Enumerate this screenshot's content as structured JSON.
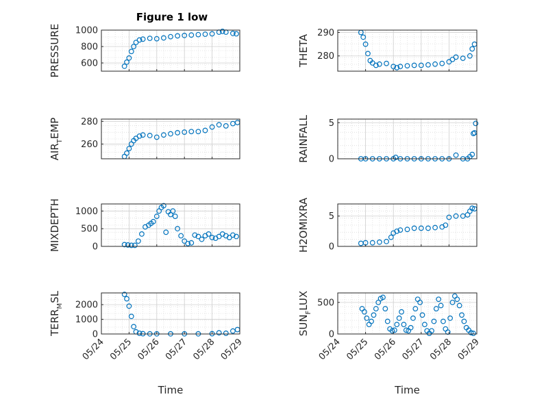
{
  "figure": {
    "title": "Figure 1 low",
    "marker_color": "#0072BD",
    "grid": "on (major + minor dotted)",
    "background": "#ffffff"
  },
  "chart_data": [
    {
      "type": "scatter",
      "name_key": "pressure",
      "ylabel": "PRESSURE",
      "xlabel": "",
      "ylim": [
        500,
        1000
      ],
      "yticks": [
        600,
        800,
        1000
      ],
      "ytick_labels": [
        "600",
        "800",
        "1000"
      ],
      "xlim": [
        "05/24 00:00",
        "05/29 00:00"
      ],
      "x": [
        "05/24 20:00",
        "05/24 22:00",
        "05/25 00:00",
        "05/25 02:00",
        "05/25 04:00",
        "05/25 06:00",
        "05/25 09:00",
        "05/25 12:00",
        "05/25 18:00",
        "05/26 00:00",
        "05/26 06:00",
        "05/26 12:00",
        "05/26 18:00",
        "05/27 00:00",
        "05/27 06:00",
        "05/27 12:00",
        "05/27 18:00",
        "05/28 00:00",
        "05/28 06:00",
        "05/28 09:00",
        "05/28 12:00",
        "05/28 18:00",
        "05/28 21:00"
      ],
      "y": [
        560,
        610,
        660,
        740,
        800,
        850,
        880,
        890,
        900,
        895,
        905,
        920,
        930,
        935,
        940,
        945,
        950,
        955,
        975,
        985,
        975,
        960,
        955
      ]
    },
    {
      "type": "scatter",
      "name_key": "theta",
      "ylabel": "THETA",
      "xlabel": "",
      "ylim": [
        273.5,
        291
      ],
      "yticks": [
        280,
        290
      ],
      "ytick_labels": [
        "280",
        "290"
      ],
      "xlim": [
        "05/24 00:00",
        "05/29 00:00"
      ],
      "x": [
        "05/24 20:00",
        "05/24 22:00",
        "05/25 00:00",
        "05/25 02:00",
        "05/25 04:00",
        "05/25 06:00",
        "05/25 09:00",
        "05/25 12:00",
        "05/25 18:00",
        "05/26 00:00",
        "05/26 03:00",
        "05/26 06:00",
        "05/26 12:00",
        "05/26 18:00",
        "05/27 00:00",
        "05/27 06:00",
        "05/27 12:00",
        "05/27 18:00",
        "05/28 00:00",
        "05/28 03:00",
        "05/28 06:00",
        "05/28 12:00",
        "05/28 18:00",
        "05/28 20:00",
        "05/28 22:00"
      ],
      "y": [
        290,
        288,
        285,
        281,
        278,
        277,
        276,
        276.5,
        276.8,
        275.5,
        275,
        275.5,
        275.8,
        276,
        276,
        276.2,
        276.5,
        276.8,
        277.5,
        278.5,
        279.5,
        279,
        280,
        283,
        285
      ]
    },
    {
      "type": "scatter",
      "name_key": "air_temp",
      "ylabel": "AIR_TEMP",
      "xlabel": "",
      "ylim": [
        247,
        282
      ],
      "yticks": [
        260,
        280
      ],
      "ytick_labels": [
        "260",
        "280"
      ],
      "xlim": [
        "05/24 00:00",
        "05/29 00:00"
      ],
      "x": [
        "05/24 20:00",
        "05/24 22:00",
        "05/25 00:00",
        "05/25 02:00",
        "05/25 04:00",
        "05/25 06:00",
        "05/25 09:00",
        "05/25 12:00",
        "05/25 18:00",
        "05/26 00:00",
        "05/26 06:00",
        "05/26 12:00",
        "05/26 18:00",
        "05/27 00:00",
        "05/27 06:00",
        "05/27 12:00",
        "05/27 18:00",
        "05/28 00:00",
        "05/28 06:00",
        "05/28 12:00",
        "05/28 18:00",
        "05/28 22:00"
      ],
      "y": [
        249,
        252,
        256,
        260,
        263,
        265,
        267,
        268,
        267.5,
        266,
        268,
        269,
        270,
        270.5,
        271,
        271,
        272,
        275,
        277,
        276,
        278,
        279
      ]
    },
    {
      "type": "scatter",
      "name_key": "rainfall",
      "ylabel": "RAINFALL",
      "xlabel": "",
      "ylim": [
        0,
        5.5
      ],
      "yticks": [
        0,
        5
      ],
      "ytick_labels": [
        "0",
        "5"
      ],
      "xlim": [
        "05/24 00:00",
        "05/29 00:00"
      ],
      "x": [
        "05/24 20:00",
        "05/25 00:00",
        "05/25 06:00",
        "05/25 12:00",
        "05/25 18:00",
        "05/26 00:00",
        "05/26 02:00",
        "05/26 06:00",
        "05/26 12:00",
        "05/26 18:00",
        "05/27 00:00",
        "05/27 06:00",
        "05/27 12:00",
        "05/27 18:00",
        "05/28 00:00",
        "05/28 06:00",
        "05/28 12:00",
        "05/28 16:00",
        "05/28 18:00",
        "05/28 20:00",
        "05/28 21:00",
        "05/28 22:00",
        "05/28 23:00"
      ],
      "y": [
        0,
        0,
        0,
        0,
        0,
        0,
        0.2,
        0,
        0,
        0,
        0,
        0,
        0,
        0,
        0,
        0.5,
        0,
        0,
        0.3,
        0.6,
        3.5,
        3.6,
        4.9
      ]
    },
    {
      "type": "scatter",
      "name_key": "mixdepth",
      "ylabel": "MIXDEPTH",
      "xlabel": "",
      "ylim": [
        0,
        1200
      ],
      "yticks": [
        0,
        500,
        1000
      ],
      "ytick_labels": [
        "0",
        "500",
        "1000"
      ],
      "xlim": [
        "05/24 00:00",
        "05/29 00:00"
      ],
      "x": [
        "05/24 20:00",
        "05/24 23:00",
        "05/25 02:00",
        "05/25 05:00",
        "05/25 08:00",
        "05/25 11:00",
        "05/25 14:00",
        "05/25 17:00",
        "05/25 19:00",
        "05/25 21:00",
        "05/26 00:00",
        "05/26 02:00",
        "05/26 04:00",
        "05/26 06:00",
        "05/26 08:00",
        "05/26 10:00",
        "05/26 12:00",
        "05/26 14:00",
        "05/26 16:00",
        "05/26 18:00",
        "05/26 21:00",
        "05/27 00:00",
        "05/27 03:00",
        "05/27 06:00",
        "05/27 09:00",
        "05/27 12:00",
        "05/27 15:00",
        "05/27 18:00",
        "05/27 21:00",
        "05/28 00:00",
        "05/28 03:00",
        "05/28 06:00",
        "05/28 09:00",
        "05/28 12:00",
        "05/28 15:00",
        "05/28 18:00",
        "05/28 21:00"
      ],
      "y": [
        50,
        40,
        30,
        30,
        150,
        350,
        550,
        600,
        650,
        700,
        850,
        1000,
        1100,
        1150,
        400,
        980,
        900,
        1000,
        850,
        500,
        300,
        150,
        80,
        100,
        320,
        280,
        200,
        300,
        350,
        250,
        230,
        280,
        350,
        300,
        250,
        320,
        280
      ]
    },
    {
      "type": "scatter",
      "name_key": "h2omixra",
      "ylabel": "H2OMIXRA",
      "xlabel": "",
      "ylim": [
        0,
        7
      ],
      "yticks": [
        0,
        5
      ],
      "ytick_labels": [
        "0",
        "5"
      ],
      "xlim": [
        "05/24 00:00",
        "05/29 00:00"
      ],
      "x": [
        "05/24 20:00",
        "05/25 00:00",
        "05/25 06:00",
        "05/25 12:00",
        "05/25 18:00",
        "05/25 22:00",
        "05/26 00:00",
        "05/26 03:00",
        "05/26 06:00",
        "05/26 12:00",
        "05/26 18:00",
        "05/27 00:00",
        "05/27 06:00",
        "05/27 12:00",
        "05/27 18:00",
        "05/27 21:00",
        "05/28 00:00",
        "05/28 06:00",
        "05/28 12:00",
        "05/28 16:00",
        "05/28 18:00",
        "05/28 20:00",
        "05/28 22:00"
      ],
      "y": [
        0.5,
        0.6,
        0.6,
        0.7,
        0.8,
        1.5,
        2.2,
        2.5,
        2.7,
        2.8,
        3.0,
        3.0,
        3.0,
        3.1,
        3.2,
        3.5,
        4.8,
        5.0,
        5.0,
        5.2,
        5.8,
        6.3,
        6.2
      ]
    },
    {
      "type": "scatter",
      "name_key": "terr_msl",
      "ylabel": "TERR_MSL",
      "xlabel": "Time",
      "ylim": [
        0,
        2800
      ],
      "yticks": [
        0,
        1000,
        2000
      ],
      "ytick_labels": [
        "0",
        "1000",
        "2000"
      ],
      "xlim": [
        "05/24 00:00",
        "05/29 00:00"
      ],
      "xticks": [
        "05/24",
        "05/25",
        "05/26",
        "05/27",
        "05/28",
        "05/29"
      ],
      "x": [
        "05/24 20:00",
        "05/24 22:00",
        "05/25 00:00",
        "05/25 02:00",
        "05/25 04:00",
        "05/25 06:00",
        "05/25 09:00",
        "05/25 12:00",
        "05/25 18:00",
        "05/26 00:00",
        "05/26 12:00",
        "05/27 00:00",
        "05/27 12:00",
        "05/28 00:00",
        "05/28 06:00",
        "05/28 12:00",
        "05/28 18:00",
        "05/28 22:00"
      ],
      "y": [
        2700,
        2400,
        1900,
        1200,
        500,
        150,
        50,
        20,
        10,
        10,
        10,
        10,
        10,
        20,
        80,
        50,
        200,
        300
      ]
    },
    {
      "type": "scatter",
      "name_key": "sun_flux",
      "ylabel": "SUN_FLUX",
      "xlabel": "Time",
      "ylim": [
        0,
        650
      ],
      "yticks": [
        0,
        500
      ],
      "ytick_labels": [
        "0",
        "500"
      ],
      "xlim": [
        "05/24 00:00",
        "05/29 00:00"
      ],
      "xticks": [
        "05/24",
        "05/25",
        "05/26",
        "05/27",
        "05/28",
        "05/29"
      ],
      "x": [
        "05/24 21:00",
        "05/24 23:00",
        "05/25 01:00",
        "05/25 03:00",
        "05/25 05:00",
        "05/25 07:00",
        "05/25 09:00",
        "05/25 11:00",
        "05/25 13:00",
        "05/25 15:00",
        "05/25 17:00",
        "05/25 19:00",
        "05/25 21:00",
        "05/25 23:00",
        "05/26 01:00",
        "05/26 03:00",
        "05/26 05:00",
        "05/26 07:00",
        "05/26 09:00",
        "05/26 11:00",
        "05/26 13:00",
        "05/26 15:00",
        "05/26 17:00",
        "05/26 19:00",
        "05/26 21:00",
        "05/26 23:00",
        "05/27 01:00",
        "05/27 03:00",
        "05/27 05:00",
        "05/27 07:00",
        "05/27 09:00",
        "05/27 11:00",
        "05/27 13:00",
        "05/27 15:00",
        "05/27 17:00",
        "05/27 19:00",
        "05/27 21:00",
        "05/27 23:00",
        "05/28 01:00",
        "05/28 03:00",
        "05/28 05:00",
        "05/28 07:00",
        "05/28 09:00",
        "05/28 11:00",
        "05/28 13:00",
        "05/28 15:00",
        "05/28 17:00",
        "05/28 19:00",
        "05/28 21:00"
      ],
      "y": [
        400,
        350,
        250,
        150,
        200,
        300,
        400,
        500,
        560,
        580,
        400,
        200,
        80,
        50,
        60,
        150,
        250,
        350,
        150,
        60,
        50,
        100,
        250,
        400,
        550,
        500,
        300,
        150,
        50,
        10,
        50,
        200,
        400,
        550,
        450,
        200,
        80,
        30,
        250,
        500,
        600,
        550,
        450,
        300,
        200,
        100,
        60,
        20,
        10
      ]
    }
  ]
}
